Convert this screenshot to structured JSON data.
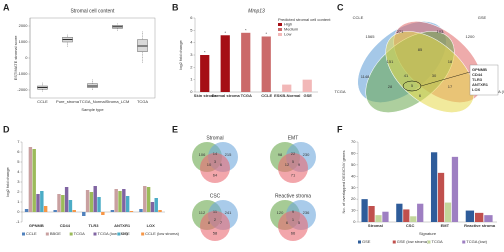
{
  "chart_data": [
    {
      "type": "box",
      "panel_label": "A",
      "title": "Stromal cell content",
      "x_label": "Sample type",
      "y_label": "ESTIMATE stromal score",
      "categories": [
        "CCLE",
        "Pure_stroma",
        "TCGA_Normal",
        "Stroma_LCM",
        "TCGA"
      ],
      "min": [
        -2100,
        700,
        -2000,
        1700,
        -300
      ],
      "q1": [
        -1950,
        1000,
        -1850,
        1850,
        400
      ],
      "median": [
        -1850,
        1150,
        -1750,
        1950,
        750
      ],
      "q3": [
        -1750,
        1300,
        -1600,
        2050,
        1150
      ],
      "max": [
        -1500,
        1500,
        -1300,
        2200,
        1700
      ],
      "color": "#d9d9d9",
      "ylim": [
        -2500,
        2500
      ],
      "yticks": [
        -2000,
        -1000,
        0,
        1000,
        2000
      ]
    },
    {
      "type": "bar",
      "panel_label": "B",
      "title": "Mmp13",
      "y_label": "log2 fold change",
      "categories": [
        "Skin stroma",
        "Dermal stroma",
        "TCGA",
        "CCLE",
        "ESKB-Normal",
        "GSE"
      ],
      "series": [
        {
          "name": "High",
          "color": "#a50f15",
          "values": [
            3.0,
            4.6,
            null,
            null,
            null,
            null
          ]
        },
        {
          "name": "Medium",
          "color": "#cb6a6a",
          "values": [
            null,
            null,
            4.8,
            4.5,
            null,
            null
          ]
        },
        {
          "name": "Low",
          "color": "#f2b8b8",
          "values": [
            null,
            null,
            null,
            null,
            0.6,
            1.0
          ]
        }
      ],
      "significance": [
        "*",
        "*",
        "*",
        "*",
        null,
        null
      ],
      "legend_title": "Predicted stromal cell content",
      "legend": "top-right",
      "ylim": [
        0,
        6
      ],
      "yticks": [
        0,
        1,
        2,
        3,
        4,
        5,
        6
      ]
    },
    {
      "type": "venn4",
      "panel_label": "C",
      "sets": [
        "CCLE",
        "GSE",
        "TCGA",
        "TCGA (low)"
      ],
      "colors": [
        "#5b9bd5",
        "#e06666",
        "#6aa84f",
        "#e6d94a"
      ],
      "region_counts": [
        1565,
        1200,
        1148,
        1049,
        271,
        103,
        85,
        151,
        18,
        41,
        30,
        28,
        17,
        6,
        5
      ],
      "annotation": [
        "GPNMB",
        "CD44",
        "TLR3",
        "ANTXR1",
        "LOX"
      ]
    },
    {
      "type": "bar",
      "panel_label": "D",
      "y_label": "log2 fold change",
      "categories": [
        "GPNMB",
        "CD44",
        "TLR3",
        "ANTXR1",
        "LOX"
      ],
      "series": [
        {
          "name": "CCLE",
          "color": "#4f81bd",
          "values": [
            0.3,
            0.2,
            -0.4,
            0.2,
            0.3
          ]
        },
        {
          "name": "BBGE",
          "color": "#c9a0a0",
          "values": [
            6.5,
            1.8,
            2.2,
            2.3,
            2.6
          ]
        },
        {
          "name": "TCGA",
          "color": "#9bbb59",
          "values": [
            6.3,
            1.7,
            2.0,
            2.1,
            2.5
          ]
        },
        {
          "name": "TCGA (low CNV)",
          "color": "#8064a2",
          "values": [
            1.8,
            2.5,
            2.6,
            2.3,
            1.0
          ]
        },
        {
          "name": "GSE",
          "color": "#4bacc6",
          "values": [
            2.1,
            1.2,
            1.5,
            1.6,
            1.4
          ]
        },
        {
          "name": "CCLE (low stroma)",
          "color": "#f79646",
          "values": [
            0.6,
            0.2,
            -0.3,
            0.1,
            0.2
          ]
        }
      ],
      "legend": "bottom",
      "ylim": [
        -1,
        7
      ],
      "yticks": [
        -1,
        0,
        1,
        2,
        3,
        4,
        5,
        6,
        7
      ]
    },
    {
      "type": "venn3",
      "panel_label": "E",
      "colors": [
        "#6aa84f",
        "#6fa8dc",
        "#ea6b73"
      ],
      "diagrams": [
        {
          "title": "Stromal",
          "counts": [
            106,
            215,
            64,
            14,
            10,
            6,
            3
          ]
        },
        {
          "title": "EMT",
          "counts": [
            98,
            230,
            71,
            22,
            12,
            9,
            5
          ]
        },
        {
          "title": "CSC",
          "counts": [
            112,
            241,
            58,
            11,
            8,
            7,
            2
          ]
        },
        {
          "title": "Reactive stroma",
          "counts": [
            120,
            236,
            66,
            9,
            6,
            5,
            1
          ]
        }
      ]
    },
    {
      "type": "bar",
      "panel_label": "F",
      "x_label": "Signature",
      "y_label": "No. of overlapped DEG/CNV genes",
      "categories": [
        "Stromal",
        "CSC",
        "EMT",
        "Reactive stroma"
      ],
      "series": [
        {
          "name": "GSE",
          "color": "#2e5c9a",
          "values": [
            20,
            16,
            61,
            10
          ]
        },
        {
          "name": "GSE (low stroma)",
          "color": "#c0504d",
          "values": [
            14,
            11,
            43,
            8
          ]
        },
        {
          "name": "TCGA",
          "color": "#c3d69b",
          "values": [
            6,
            5,
            17,
            null
          ]
        },
        {
          "name": "TCGA (low)",
          "color": "#9e7fc2",
          "values": [
            9,
            16,
            57,
            6
          ]
        }
      ],
      "legend": "bottom",
      "ylim": [
        0,
        70
      ],
      "yticks": [
        0,
        10,
        20,
        30,
        40,
        50,
        60,
        70
      ]
    }
  ]
}
